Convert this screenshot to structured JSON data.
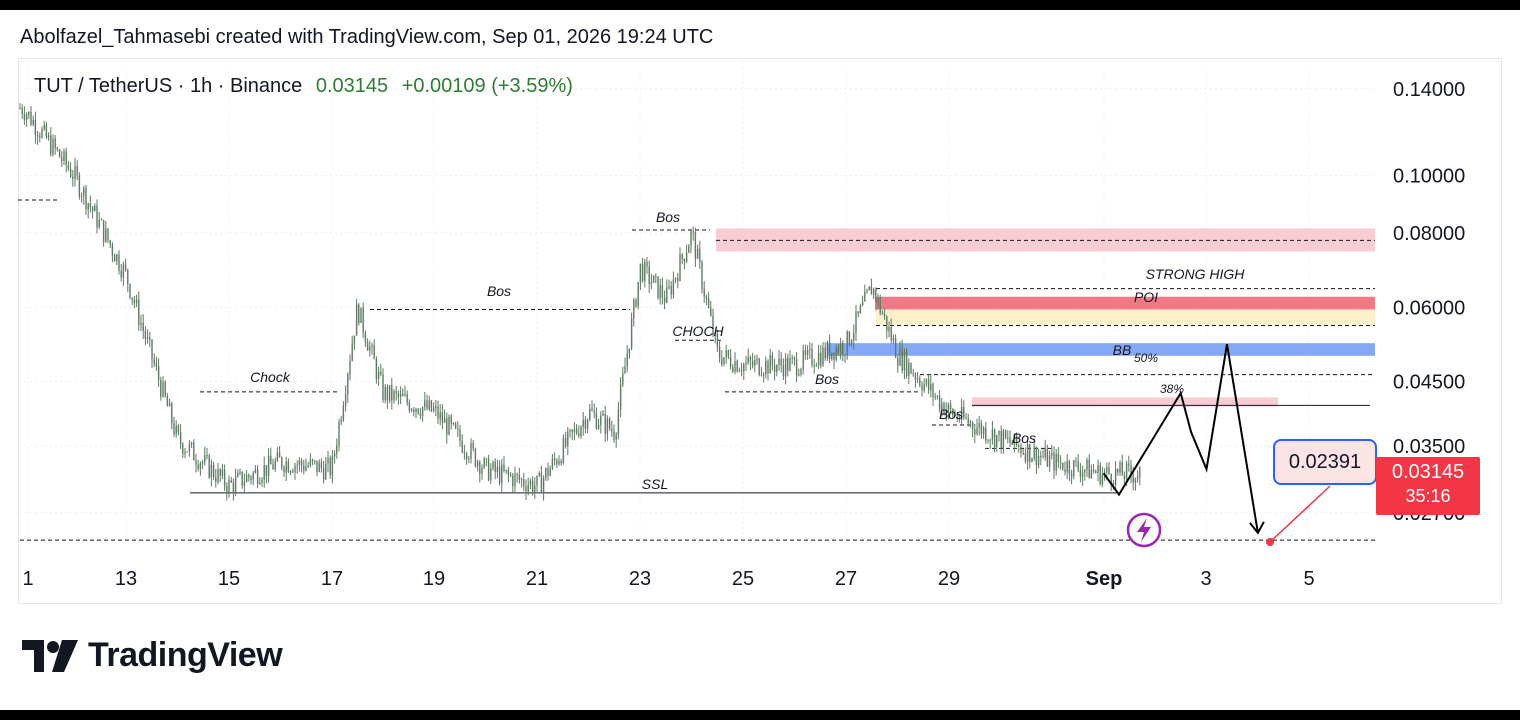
{
  "attribution": "Abolfazel_Tahmasebi created with TradingView.com, Sep 01, 2026 19:24 UTC",
  "symbol": {
    "title": "TUT / TetherUS · 1h · Binance",
    "last": "0.03145",
    "change": "+0.00109 (+3.59%)"
  },
  "brand": {
    "name": "TradingView"
  },
  "price_tag": {
    "price": "0.03145",
    "countdown": "35:16"
  },
  "target_label": "0.02391",
  "colors": {
    "candle": "#5f7a63",
    "accent_red": "#f23645",
    "zone_pink": "#f7c6cc",
    "zone_red": "#ee6a78",
    "zone_blue": "#7ea3f5",
    "zone_yellow": "#fdf1cc",
    "green_text": "#2e7d32"
  },
  "chart_data": {
    "type": "line",
    "scale": "log",
    "ylim": [
      0.022,
      0.15
    ],
    "y_ticks": [
      "0.14000",
      "0.10000",
      "0.08000",
      "0.06000",
      "0.04500",
      "0.03500",
      "0.02700"
    ],
    "x_ticks": [
      "1",
      "13",
      "15",
      "17",
      "19",
      "21",
      "23",
      "25",
      "27",
      "29",
      "Sep",
      "3",
      "5"
    ],
    "series": [
      {
        "x": [
          "Aug 11",
          "Aug 12",
          "Aug 13",
          "Aug 14",
          "Aug 15",
          "Aug 16",
          "Aug 17",
          "Aug 17.5",
          "Aug 18",
          "Aug 19",
          "Aug 20",
          "Aug 21",
          "Aug 22",
          "Aug 22.5",
          "Aug 23",
          "Aug 23.5",
          "Aug 24",
          "Aug 24.5",
          "Aug 25",
          "Aug 26",
          "Aug 27",
          "Aug 27.5",
          "Aug 28",
          "Aug 29",
          "Aug 30",
          "Aug 31",
          "Sep 1"
        ],
        "values": [
          0.13,
          0.1,
          0.068,
          0.036,
          0.03,
          0.033,
          0.032,
          0.06,
          0.043,
          0.04,
          0.032,
          0.03,
          0.04,
          0.037,
          0.07,
          0.062,
          0.08,
          0.05,
          0.048,
          0.048,
          0.052,
          0.065,
          0.05,
          0.04,
          0.036,
          0.033,
          0.03145
        ]
      }
    ],
    "annotations": [
      "Bos",
      "Bos",
      "Chock",
      "CHOCH",
      "Bos",
      "Bos",
      "Bos",
      "SSL",
      "STRONG HIGH",
      "POI",
      "BB",
      "50%",
      "38%"
    ],
    "projection": {
      "x": [
        "Sep 1",
        "Sep 1.3",
        "Sep 2.5",
        "Sep 2.7",
        "Sep 3",
        "Sep 3.4",
        "Sep 4"
      ],
      "values": [
        0.0315,
        0.029,
        0.043,
        0.037,
        0.032,
        0.052,
        0.025
      ]
    }
  }
}
